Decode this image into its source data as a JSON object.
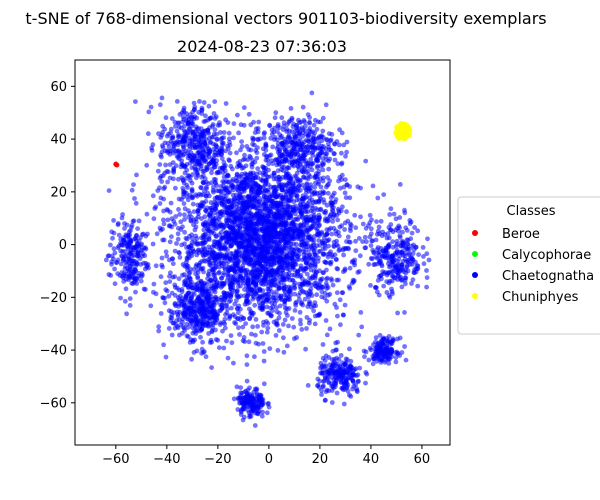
{
  "chart_data": {
    "type": "scatter",
    "title": "t-SNE of 768-dimensional vectors 901103-biodiversity exemplars",
    "subtitle": "2024-08-23 07:36:03",
    "xlabel": "",
    "ylabel": "",
    "xlim": [
      -76,
      71
    ],
    "ylim": [
      -76,
      70
    ],
    "xticks": [
      -60,
      -40,
      -20,
      0,
      20,
      40,
      60
    ],
    "yticks": [
      -60,
      -40,
      -20,
      0,
      20,
      40,
      60
    ],
    "grid": false,
    "legend": {
      "title": "Classes",
      "placement": "center-right-outside"
    },
    "series": [
      {
        "name": "Beroe",
        "color": "#ff0000",
        "points": [
          [
            -60,
            30.5
          ],
          [
            -59.6,
            30.2
          ]
        ]
      },
      {
        "name": "Calycophorae",
        "color": "#00ff00",
        "points": []
      },
      {
        "name": "Chaetognatha",
        "color": "#0000ff",
        "count": 5200,
        "cloud": [
          {
            "center": [
              -3,
              3
            ],
            "spread": [
              30,
              30
            ],
            "weight": 0.62
          },
          {
            "center": [
              -30,
              38
            ],
            "spread": [
              12,
              14
            ],
            "weight": 0.07
          },
          {
            "center": [
              12,
              38
            ],
            "spread": [
              12,
              10
            ],
            "weight": 0.05
          },
          {
            "center": [
              -55,
              -5
            ],
            "spread": [
              7,
              13
            ],
            "weight": 0.04
          },
          {
            "center": [
              50,
              -4
            ],
            "spread": [
              9,
              13
            ],
            "weight": 0.05
          },
          {
            "center": [
              -7,
              -60
            ],
            "spread": [
              5,
              5
            ],
            "weight": 0.03
          },
          {
            "center": [
              28,
              -50
            ],
            "spread": [
              8,
              7
            ],
            "weight": 0.04
          },
          {
            "center": [
              45,
              -40
            ],
            "spread": [
              5,
              4
            ],
            "weight": 0.03
          },
          {
            "center": [
              -28,
              -25
            ],
            "spread": [
              10,
              12
            ],
            "weight": 0.07
          }
        ]
      },
      {
        "name": "Chuniphyes",
        "color": "#ffff00",
        "count": 260,
        "cloud": [
          {
            "center": [
              52.5,
              43
            ],
            "spread": [
              2.0,
              2.2
            ],
            "weight": 1.0
          }
        ]
      }
    ]
  }
}
